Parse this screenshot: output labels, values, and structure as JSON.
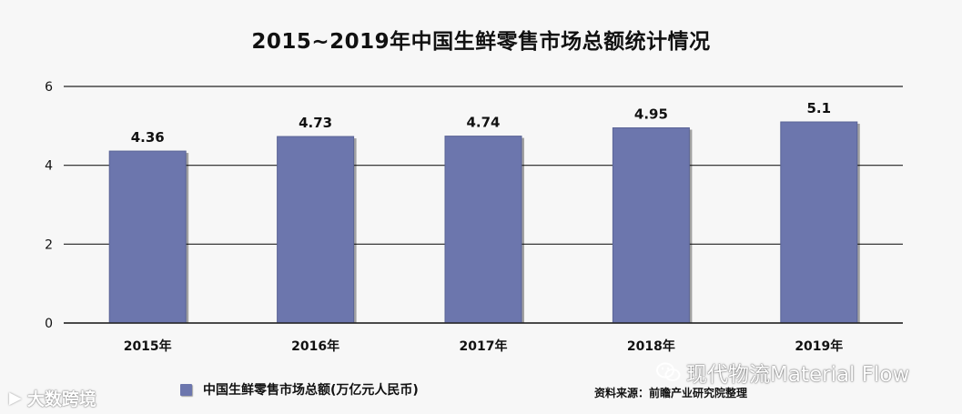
{
  "colors": {
    "bar": "#6c76ad",
    "bar_edge": "#5a6496",
    "gridline": "#222222",
    "background": "#f7f7f7"
  },
  "legend": {
    "label": "中国生鲜零售市场总额(万亿元人民币)"
  },
  "source": {
    "text": "资料来源：前瞻产业研究院整理"
  },
  "watermarks": {
    "left": {
      "icon": "video-logo-icon",
      "text": "大数跨境"
    },
    "right": {
      "icon": "wechat-icon",
      "text": "现代物流Material Flow"
    }
  },
  "chart_data": {
    "type": "bar",
    "title": "2015~2019年中国生鲜零售市场总额统计情况",
    "xlabel": "",
    "ylabel": "",
    "categories": [
      "2015年",
      "2016年",
      "2017年",
      "2018年",
      "2019年"
    ],
    "series": [
      {
        "name": "中国生鲜零售市场总额(万亿元人民币)",
        "values": [
          4.36,
          4.73,
          4.74,
          4.95,
          5.1
        ]
      }
    ],
    "value_labels": [
      "4.36",
      "4.73",
      "4.74",
      "4.95",
      "5.1"
    ],
    "ylim": [
      0,
      6
    ],
    "yticks": [
      "0",
      "2",
      "4",
      "6"
    ],
    "grid": true,
    "legend_position": "bottom-left"
  }
}
